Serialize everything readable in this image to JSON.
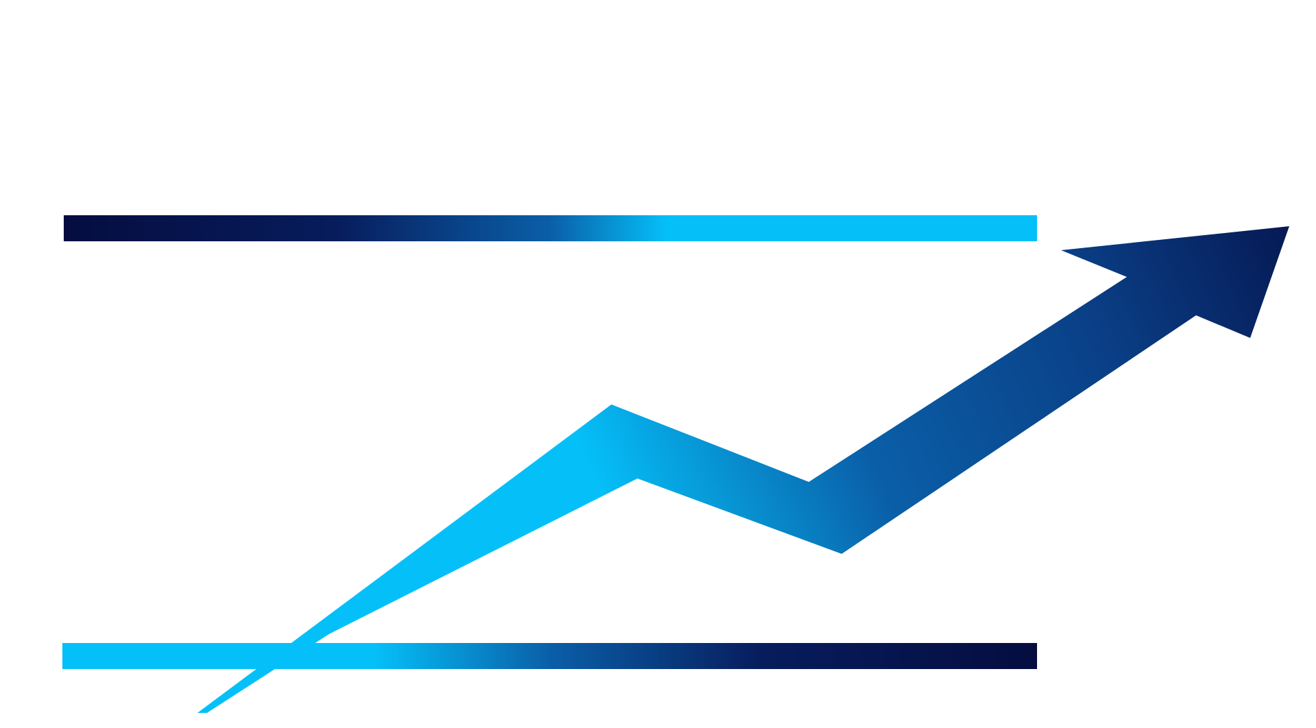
{
  "illustration": {
    "subject": "upward-trend-arrow-over-grid",
    "icons": [
      "grid-icon",
      "trend-arrow-icon"
    ]
  },
  "colors": {
    "background": "#ffffff",
    "navy": "#050d40",
    "deep_blue": "#0a3f86",
    "cyan": "#05c0f8",
    "light_cyan": "#2ed0ff"
  },
  "trend": {
    "direction": "up"
  }
}
